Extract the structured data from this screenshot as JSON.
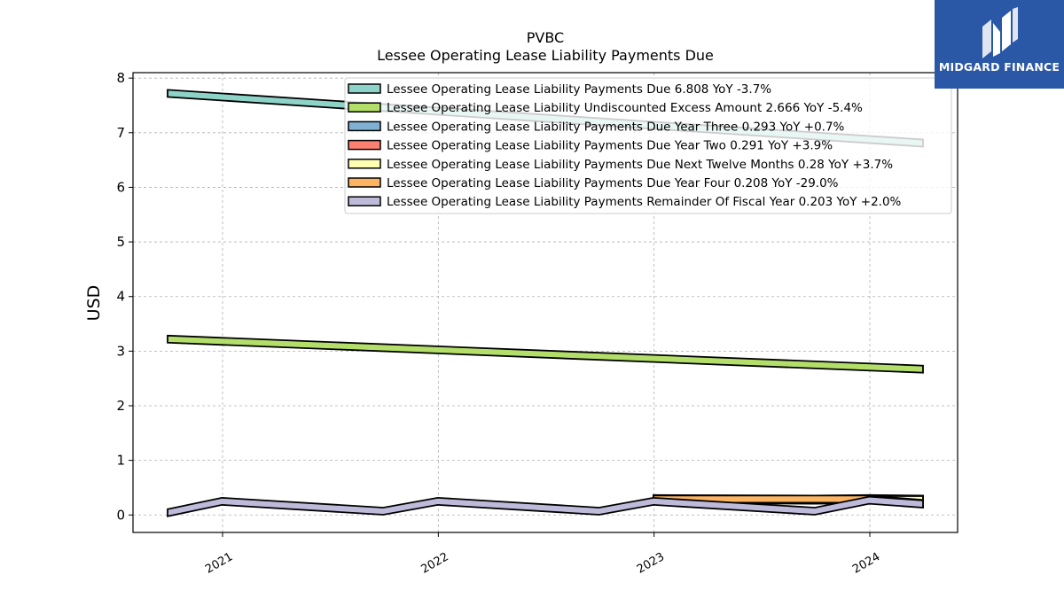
{
  "chart_data": {
    "type": "area",
    "title": "PVBC",
    "subtitle": "Lessee Operating Lease Liability Payments Due",
    "ylabel": "USD",
    "xlabel": "",
    "ylim": [
      -0.32,
      8.1
    ],
    "yticks": [
      0,
      1,
      2,
      3,
      4,
      5,
      6,
      7,
      8
    ],
    "xticks": [
      "2021",
      "2022",
      "2023",
      "2024"
    ],
    "grid": true,
    "legend_placement": "top-right",
    "series": [
      {
        "name": "Lessee Operating Lease Liability Payments Due",
        "legend_label": "Lessee Operating Lease Liability Payments Due  6.808 YoY -3.7%",
        "color": "#8dd3c7",
        "points": [
          [
            "2020-09-30",
            7.72
          ],
          [
            "2024-03-31",
            6.81
          ]
        ]
      },
      {
        "name": "Lessee Operating Lease Liability Undiscounted Excess Amount",
        "legend_label": "Lessee Operating Lease Liability Undiscounted Excess Amount  2.666 YoY -5.4%",
        "color": "#b3de69",
        "points": [
          [
            "2020-09-30",
            3.22
          ],
          [
            "2024-03-31",
            2.67
          ]
        ]
      },
      {
        "name": "Lessee Operating Lease Liability Payments Due Year Three",
        "legend_label": "Lessee Operating Lease Liability Payments Due Year Three  0.293 YoY +0.7%",
        "color": "#80b1d3",
        "points": [
          [
            "2022-12-31",
            0.3
          ],
          [
            "2023-09-30",
            0.29
          ],
          [
            "2023-12-31",
            0.3
          ],
          [
            "2024-03-31",
            0.29
          ]
        ]
      },
      {
        "name": "Lessee Operating Lease Liability Payments Due Year Two",
        "legend_label": "Lessee Operating Lease Liability Payments Due Year Two  0.291 YoY +3.9%",
        "color": "#fb8072",
        "points": [
          [
            "2022-12-31",
            0.29
          ],
          [
            "2023-09-30",
            0.29
          ],
          [
            "2023-12-31",
            0.29
          ],
          [
            "2024-03-31",
            0.29
          ]
        ]
      },
      {
        "name": "Lessee Operating Lease Liability Payments Due Next Twelve Months",
        "legend_label": "Lessee Operating Lease Liability Payments Due Next Twelve Months  0.28 YoY +3.7%",
        "color": "#ffffb3",
        "points": [
          [
            "2022-12-31",
            0.28
          ],
          [
            "2023-09-30",
            0.27
          ],
          [
            "2023-12-31",
            0.28
          ],
          [
            "2024-03-31",
            0.28
          ]
        ]
      },
      {
        "name": "Lessee Operating Lease Liability Payments Due Year Four",
        "legend_label": "Lessee Operating Lease Liability Payments Due Year Four  0.208 YoY -29.0%",
        "color": "#fdb462",
        "points": [
          [
            "2022-12-31",
            0.29
          ],
          [
            "2023-09-30",
            0.29
          ],
          [
            "2023-12-31",
            0.29
          ],
          [
            "2024-03-31",
            0.21
          ]
        ]
      },
      {
        "name": "Lessee Operating Lease Liability Payments Remainder Of Fiscal Year",
        "legend_label": "Lessee Operating Lease Liability Payments Remainder Of Fiscal Year  0.203 YoY +2.0%",
        "color": "#bebada",
        "points": [
          [
            "2020-09-30",
            0.04
          ],
          [
            "2020-12-31",
            0.25
          ],
          [
            "2021-09-30",
            0.07
          ],
          [
            "2021-12-31",
            0.25
          ],
          [
            "2022-09-30",
            0.07
          ],
          [
            "2022-12-31",
            0.25
          ],
          [
            "2023-09-30",
            0.07
          ],
          [
            "2023-12-31",
            0.27
          ],
          [
            "2024-03-31",
            0.2
          ]
        ]
      }
    ]
  },
  "logo": {
    "text": "MIDGARD FINANCE",
    "color": "#2a57a6"
  }
}
